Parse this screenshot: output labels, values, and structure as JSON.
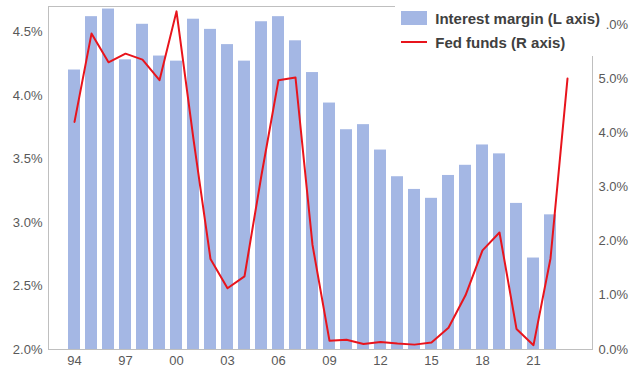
{
  "chart_data": {
    "type": "bar",
    "categories": [
      "94",
      null,
      null,
      "97",
      null,
      null,
      "00",
      null,
      null,
      "03",
      null,
      null,
      "06",
      null,
      null,
      "09",
      null,
      null,
      "12",
      null,
      null,
      "15",
      null,
      null,
      "18",
      null,
      null,
      "21",
      null,
      null
    ],
    "series": [
      {
        "name": "Interest margin (L axis)",
        "type": "bar",
        "color": "#a4b7e4",
        "values": [
          4.2,
          4.62,
          4.68,
          4.28,
          4.56,
          4.31,
          4.27,
          4.6,
          4.52,
          4.4,
          4.27,
          4.58,
          4.62,
          4.43,
          4.18,
          3.94,
          3.73,
          3.77,
          3.57,
          3.36,
          3.26,
          3.19,
          3.37,
          3.45,
          3.61,
          3.54,
          3.15,
          2.72,
          3.06,
          null
        ]
      },
      {
        "name": "Fed funds (R axis)",
        "type": "line",
        "axis": "y2",
        "color": "#e8141c",
        "values": [
          4.2,
          5.83,
          5.3,
          5.46,
          5.35,
          4.97,
          6.24,
          3.88,
          1.67,
          1.13,
          1.35,
          3.22,
          4.97,
          5.02,
          1.93,
          0.16,
          0.18,
          0.1,
          0.14,
          0.11,
          0.09,
          0.13,
          0.4,
          1.0,
          1.83,
          2.16,
          0.38,
          0.08,
          1.68,
          5.0
        ]
      }
    ],
    "ylim": [
      2.0,
      4.7
    ],
    "yticks": [
      {
        "value": 2.0,
        "label": "2.0%"
      },
      {
        "value": 2.5,
        "label": "2.5%"
      },
      {
        "value": 3.0,
        "label": "3.0%"
      },
      {
        "value": 3.5,
        "label": "3.5%"
      },
      {
        "value": 4.0,
        "label": "4.0%"
      },
      {
        "value": 4.5,
        "label": "4.5%"
      }
    ],
    "y2lim": [
      0,
      6.33
    ],
    "y2ticks": [
      {
        "value": 0,
        "label": "0.0%"
      },
      {
        "value": 1,
        "label": "1.0%"
      },
      {
        "value": 2,
        "label": "2.0%"
      },
      {
        "value": 3,
        "label": "3.0%"
      },
      {
        "value": 4,
        "label": "4.0%"
      },
      {
        "value": 5,
        "label": "5.0%"
      },
      {
        "value": 6,
        "label": "6.0%"
      }
    ],
    "legend": "top-right"
  }
}
